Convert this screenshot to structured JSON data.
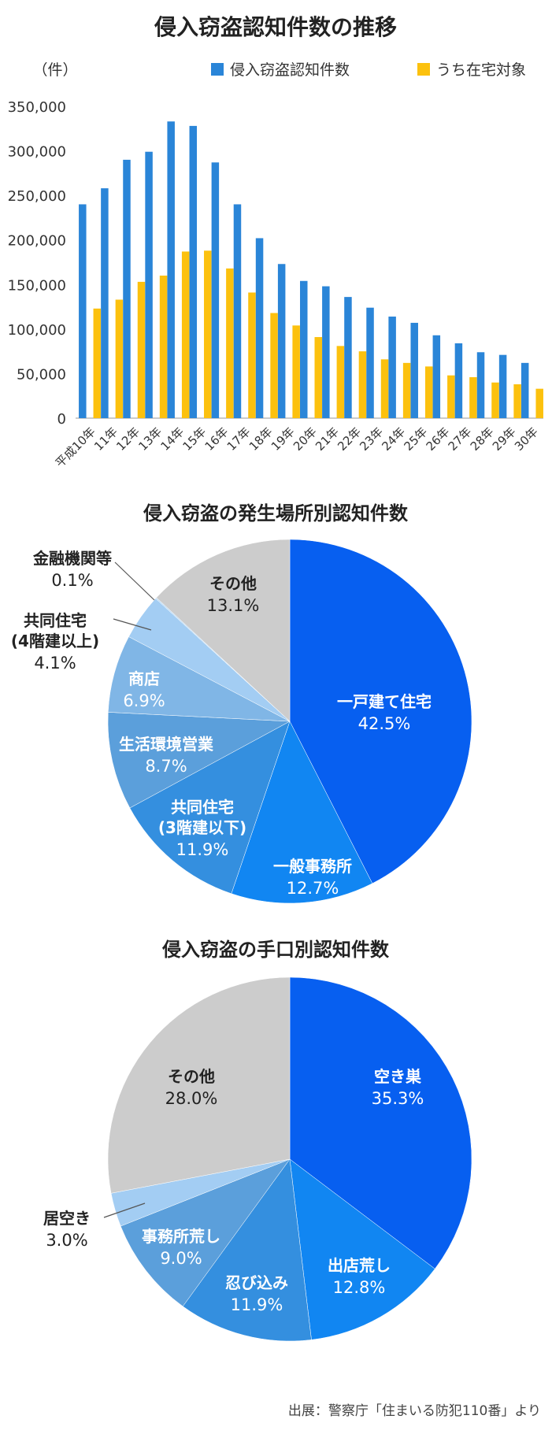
{
  "source": "出展：警察庁「住まいる防犯110番」より",
  "chart_data": [
    {
      "type": "bar",
      "title": "侵入窃盗認知件数の推移",
      "ylabel": "（件）",
      "xlabel": "",
      "ylim": [
        0,
        350000
      ],
      "yticks": [
        0,
        50000,
        100000,
        150000,
        200000,
        250000,
        300000,
        350000
      ],
      "ytick_labels": [
        "0",
        "50,000",
        "100,000",
        "150,000",
        "200,000",
        "250,000",
        "300,000",
        "350,000"
      ],
      "grid": false,
      "legend": "top-right",
      "categories": [
        "平成10年",
        "11年",
        "12年",
        "13年",
        "14年",
        "15年",
        "16年",
        "17年",
        "18年",
        "19年",
        "20年",
        "21年",
        "22年",
        "23年",
        "24年",
        "25年",
        "26年",
        "27年",
        "28年",
        "29年",
        "30年"
      ],
      "series": [
        {
          "name": "侵入窃盗認知件数",
          "color": "#2a85d8",
          "values": [
            240000,
            258000,
            290000,
            299000,
            333000,
            328000,
            287000,
            240000,
            202000,
            173000,
            154000,
            148000,
            136000,
            124000,
            114000,
            107000,
            93000,
            84000,
            74000,
            71000,
            62000
          ]
        },
        {
          "name": "うち在宅対象",
          "color": "#fcc10e",
          "values": [
            123000,
            133000,
            153000,
            160000,
            187000,
            188000,
            168000,
            141000,
            118000,
            104000,
            91000,
            81000,
            75000,
            66000,
            62000,
            58000,
            48000,
            46000,
            40000,
            38000,
            33000
          ]
        }
      ]
    },
    {
      "type": "pie",
      "title": "侵入窃盗の発生場所別認知件数",
      "slices": [
        {
          "label": "一戸建て住宅",
          "value": 42.5,
          "display": "42.5%",
          "color": "#075ff0"
        },
        {
          "label": "一般事務所",
          "value": 12.7,
          "display": "12.7%",
          "color": "#1186f2"
        },
        {
          "label": "共同住宅\n(3階建以下)",
          "value": 11.9,
          "display": "11.9%",
          "color": "#348fdf"
        },
        {
          "label": "生活環境営業",
          "value": 8.7,
          "display": "8.7%",
          "color": "#5b9fdb"
        },
        {
          "label": "商店",
          "value": 6.9,
          "display": "6.9%",
          "color": "#80b6e6"
        },
        {
          "label": "共同住宅\n(4階建以上)",
          "value": 4.1,
          "display": "4.1%",
          "color": "#a3cdf3"
        },
        {
          "label": "金融機関等",
          "value": 0.1,
          "display": "0.1%",
          "color": "#b6d8f5"
        },
        {
          "label": "その他",
          "value": 13.1,
          "display": "13.1%",
          "color": "#cccccc"
        }
      ]
    },
    {
      "type": "pie",
      "title": "侵入窃盗の手口別認知件数",
      "slices": [
        {
          "label": "空き巣",
          "value": 35.3,
          "display": "35.3%",
          "color": "#075ff0"
        },
        {
          "label": "出店荒し",
          "value": 12.8,
          "display": "12.8%",
          "color": "#1186f2"
        },
        {
          "label": "忍び込み",
          "value": 11.9,
          "display": "11.9%",
          "color": "#348fdf"
        },
        {
          "label": "事務所荒し",
          "value": 9.0,
          "display": "9.0%",
          "color": "#5b9fdb"
        },
        {
          "label": "居空き",
          "value": 3.0,
          "display": "3.0%",
          "color": "#a3cdf3"
        },
        {
          "label": "その他",
          "value": 28.0,
          "display": "28.0%",
          "color": "#cccccc"
        }
      ]
    }
  ]
}
